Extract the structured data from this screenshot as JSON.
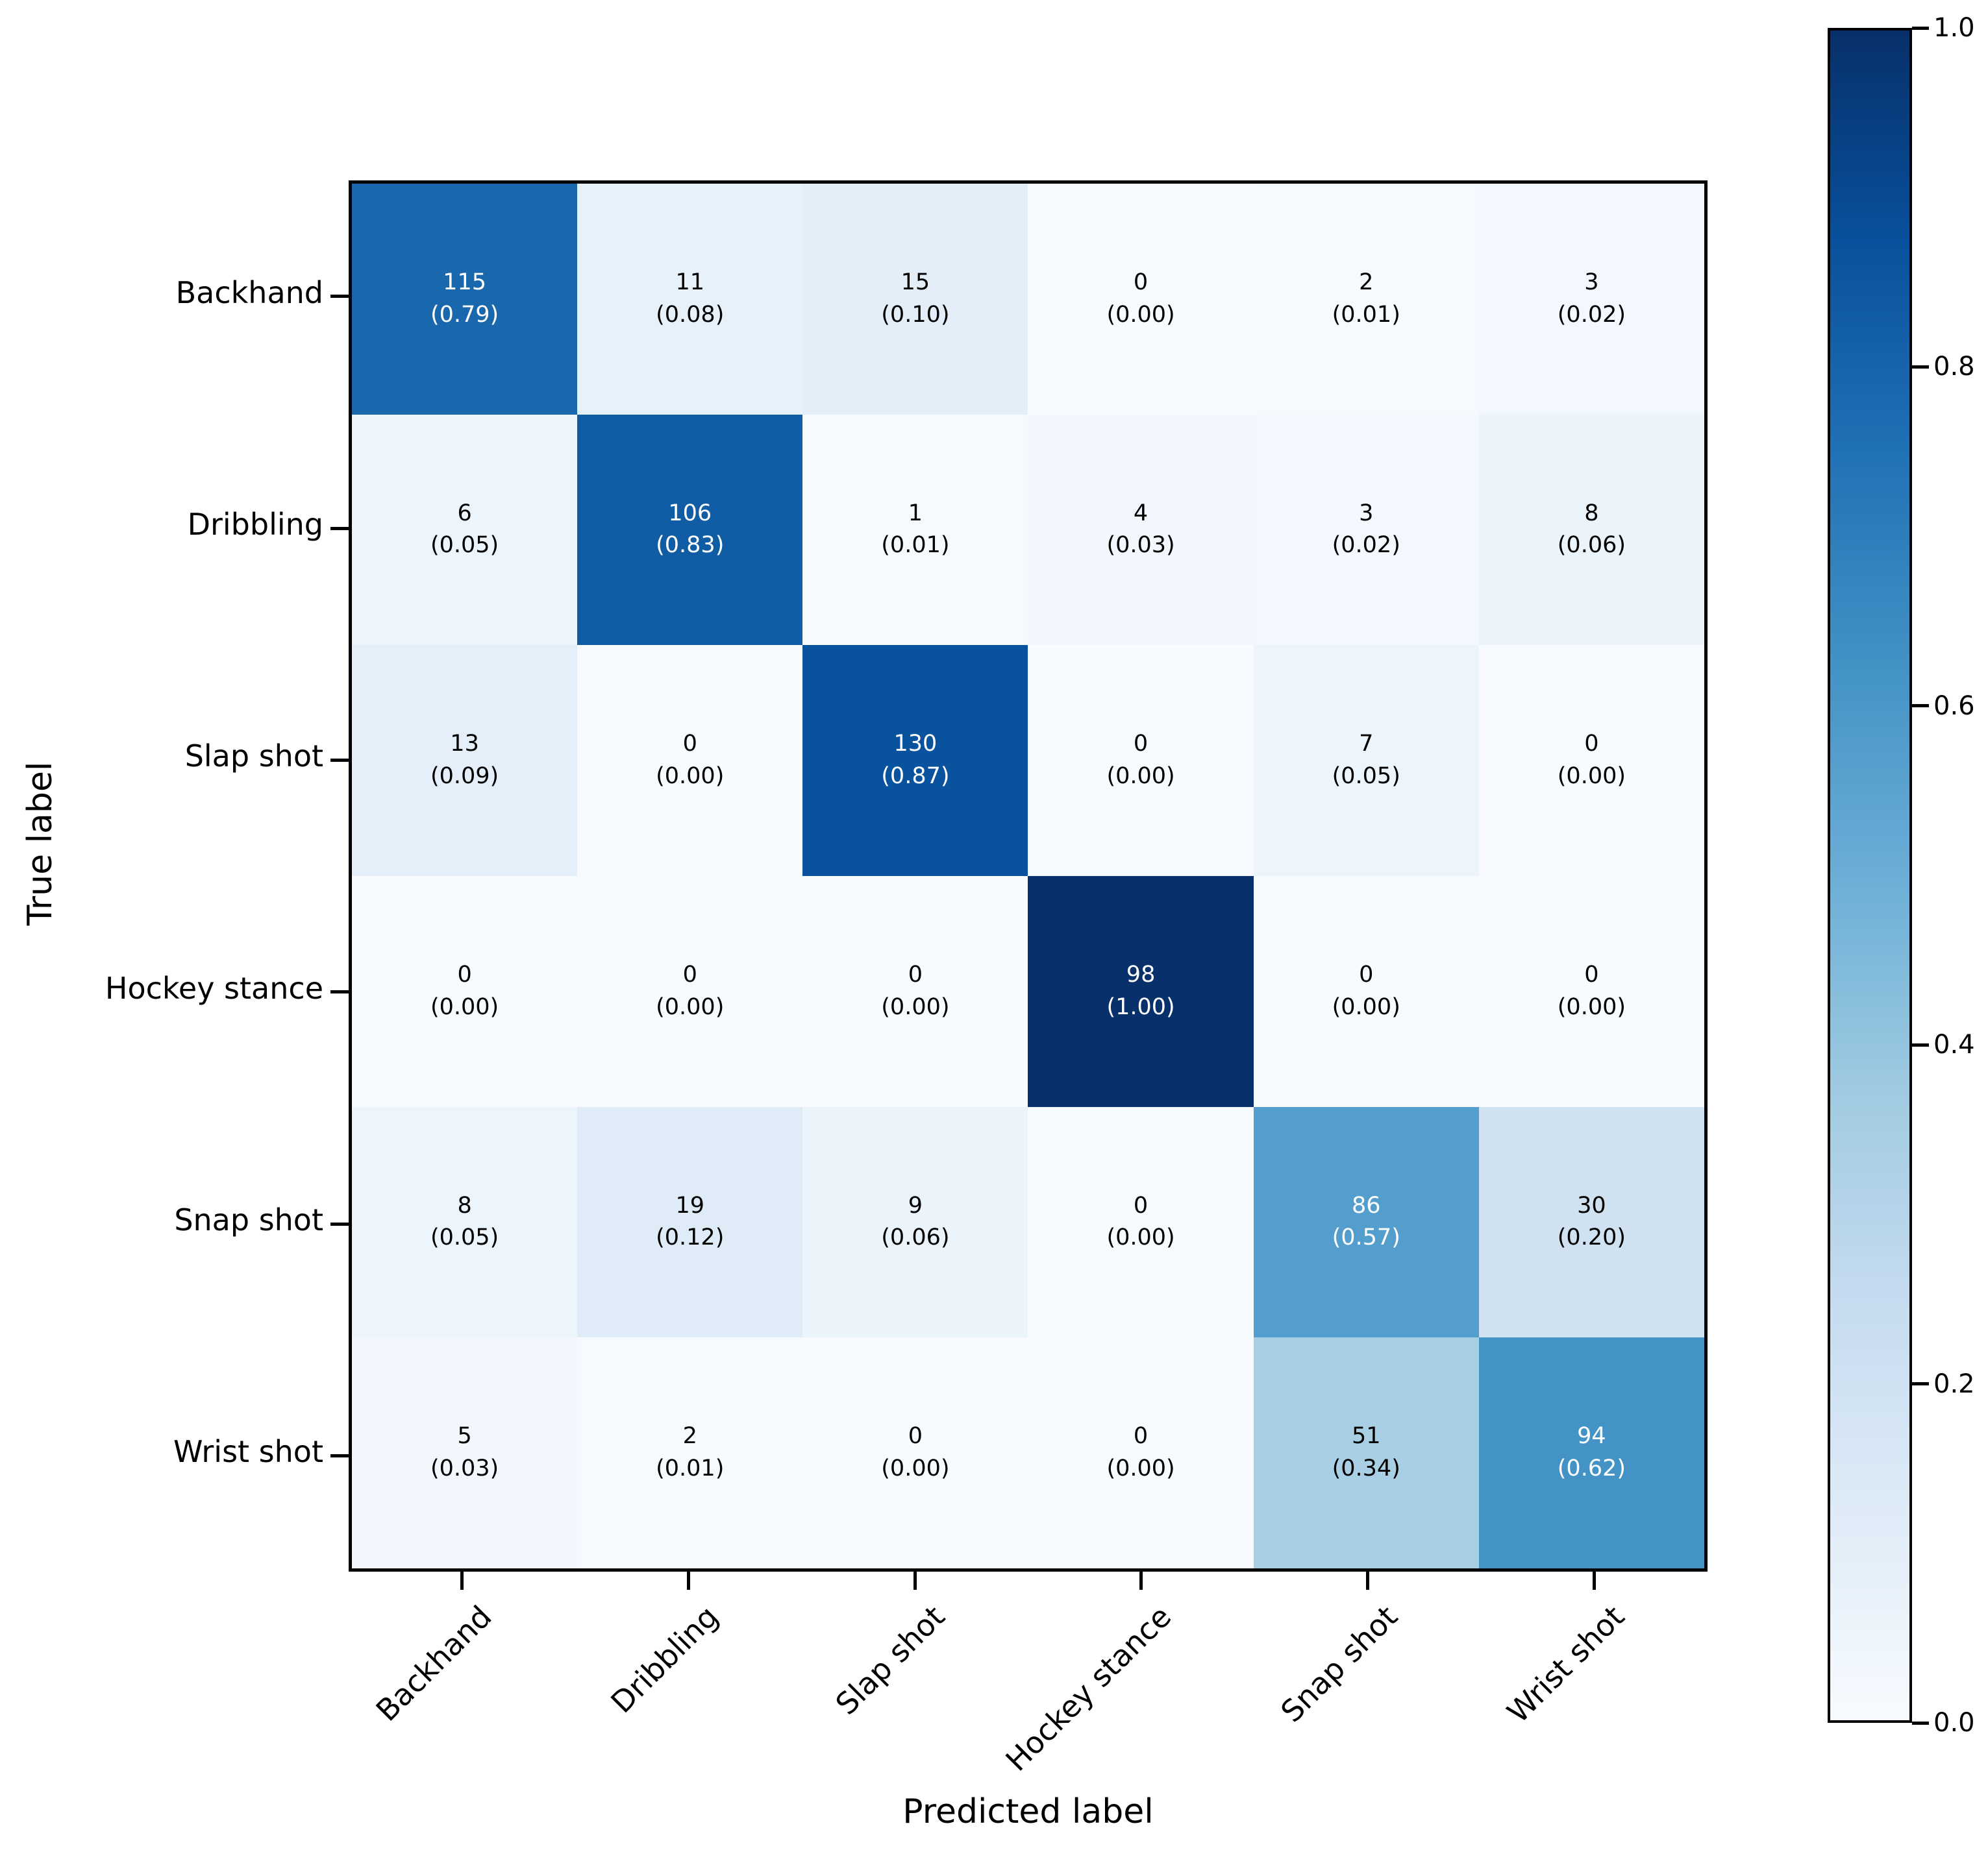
{
  "chart_data": {
    "type": "heatmap",
    "title": "",
    "xlabel": "Predicted label",
    "ylabel": "True label",
    "x_categories": [
      "Backhand",
      "Dribbling",
      "Slap shot",
      "Hockey stance",
      "Snap shot",
      "Wrist shot"
    ],
    "y_categories": [
      "Backhand",
      "Dribbling",
      "Slap shot",
      "Hockey stance",
      "Snap shot",
      "Wrist shot"
    ],
    "counts": [
      [
        115,
        11,
        15,
        0,
        2,
        3
      ],
      [
        6,
        106,
        1,
        4,
        3,
        8
      ],
      [
        13,
        0,
        130,
        0,
        7,
        0
      ],
      [
        0,
        0,
        0,
        98,
        0,
        0
      ],
      [
        8,
        19,
        9,
        0,
        86,
        30
      ],
      [
        5,
        2,
        0,
        0,
        51,
        94
      ]
    ],
    "proportions": [
      [
        "0.79",
        "0.08",
        "0.10",
        "0.00",
        "0.01",
        "0.02"
      ],
      [
        "0.05",
        "0.83",
        "0.01",
        "0.03",
        "0.02",
        "0.06"
      ],
      [
        "0.09",
        "0.00",
        "0.87",
        "0.00",
        "0.05",
        "0.00"
      ],
      [
        "0.00",
        "0.00",
        "0.00",
        "1.00",
        "0.00",
        "0.00"
      ],
      [
        "0.05",
        "0.12",
        "0.06",
        "0.00",
        "0.57",
        "0.20"
      ],
      [
        "0.03",
        "0.01",
        "0.00",
        "0.00",
        "0.34",
        "0.62"
      ]
    ],
    "cell_text_format": "count over (proportion)",
    "grid": false,
    "colorbar": {
      "tick_labels": [
        "1.0",
        "0.8",
        "0.6",
        "0.4",
        "0.2",
        "0.0"
      ],
      "tick_values": [
        1.0,
        0.8,
        0.6,
        0.4,
        0.2,
        0.0
      ],
      "range": [
        0.0,
        1.0
      ],
      "colormap_name": "Blues",
      "colormap_stops": [
        "#f7fbff",
        "#deebf7",
        "#c6dbef",
        "#9ecae1",
        "#6baed6",
        "#4292c6",
        "#2171b5",
        "#08519c",
        "#08306b"
      ],
      "position": "right"
    },
    "text_colors": {
      "light": "#ffffff",
      "dark": "#000000"
    },
    "text_color_threshold": 0.5,
    "axis_color": "#000000",
    "background": "#ffffff"
  }
}
